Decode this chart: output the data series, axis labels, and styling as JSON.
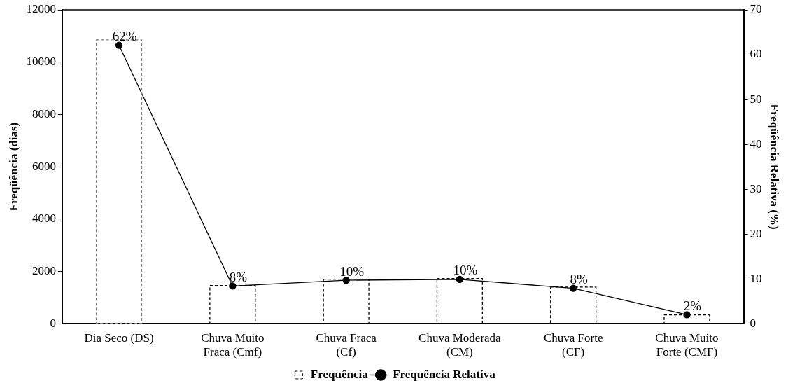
{
  "chart_data": {
    "type": "bar",
    "categories": [
      "Dia Seco (DS)",
      "Chuva Muito Fraca (Cmf)",
      "Chuva Fraca (Cf)",
      "Chuva Moderada (CM)",
      "Chuva Forte (CF)",
      "Chuva Muito Forte (CMF)"
    ],
    "series": [
      {
        "name": "Frequência",
        "type": "bar",
        "line_style": "dashed",
        "color": "#000000",
        "colors": [
          "#808080",
          "#000000",
          "#000000",
          "#000000",
          "#000000",
          "#000000"
        ],
        "values": [
          10850,
          1460,
          1700,
          1730,
          1400,
          340
        ]
      },
      {
        "name": "Frequência Relativa",
        "type": "line",
        "axis": "y2",
        "color": "#000000",
        "marker": "circle",
        "line_style": "solid",
        "values": [
          62.1,
          8.4,
          9.7,
          9.9,
          7.9,
          2.0
        ],
        "value_labels": [
          "62%",
          "8%",
          "10%",
          "10%",
          "8%",
          "2%"
        ]
      }
    ],
    "ylabel": "Freqüência (dias)",
    "y2label": "Freqüência Relativa (%)",
    "ylim": [
      0,
      12000
    ],
    "yticks": [
      0,
      2000,
      4000,
      6000,
      8000,
      10000,
      12000
    ],
    "y2lim": [
      0,
      70
    ],
    "y2ticks": [
      0,
      10,
      20,
      30,
      40,
      50,
      60,
      70
    ],
    "grid": false,
    "legend": "bottom"
  }
}
